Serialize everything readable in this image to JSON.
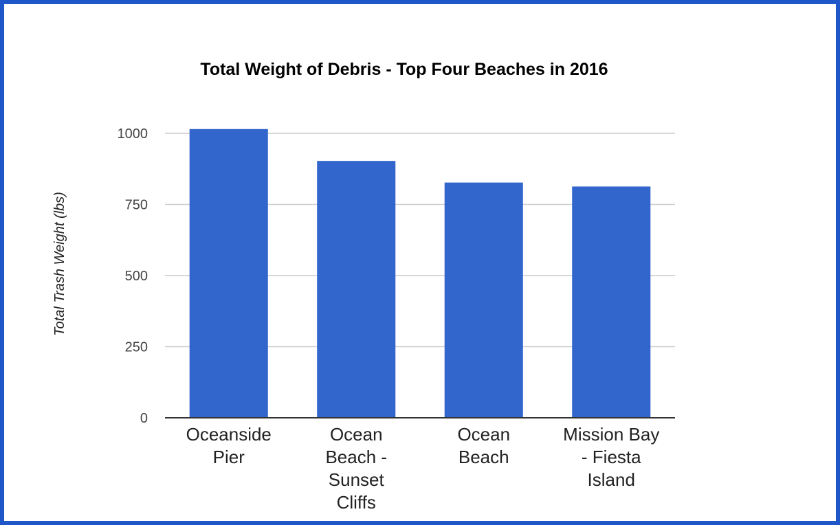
{
  "chart_data": {
    "type": "bar",
    "title": "Total Weight of Debris - Top Four Beaches in 2016",
    "xlabel": "",
    "ylabel": "Total Trash Weight (lbs)",
    "categories": [
      [
        "Oceanside",
        "Pier"
      ],
      [
        "Ocean",
        "Beach -",
        "Sunset",
        "Cliffs"
      ],
      [
        "Ocean",
        "Beach"
      ],
      [
        "Mission Bay",
        "- Fiesta",
        "Island"
      ]
    ],
    "values": [
      1015,
      903,
      827,
      813
    ],
    "ylim": [
      0,
      1000
    ],
    "yticks": [
      0,
      250,
      500,
      750,
      1000
    ],
    "grid": true,
    "legend": "none",
    "colors": {
      "bar": "#3366cc",
      "grid": "#cccccc",
      "axis": "#333333",
      "frame": "#1f56c8"
    }
  }
}
